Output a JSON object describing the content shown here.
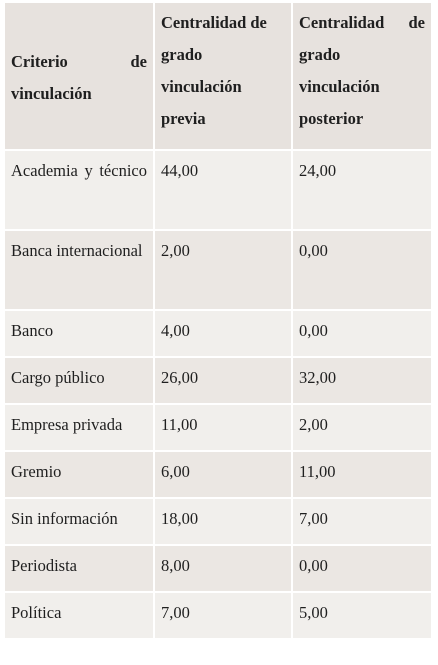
{
  "table": {
    "headers": [
      "Criterio de vinculación",
      "Centralidad de grado vinculación previa",
      "Centralidad de grado vinculación posterior"
    ],
    "rows": [
      [
        "Academia y técnico",
        "44,00",
        "24,00"
      ],
      [
        "Banca internacional",
        "2,00",
        "0,00"
      ],
      [
        "Banco",
        "4,00",
        "0,00"
      ],
      [
        "Cargo público",
        "26,00",
        "32,00"
      ],
      [
        "Empresa privada",
        "11,00",
        "2,00"
      ],
      [
        "Gremio",
        "6,00",
        "11,00"
      ],
      [
        "Sin información",
        "18,00",
        "7,00"
      ],
      [
        "Periodista",
        "8,00",
        "0,00"
      ],
      [
        "Política",
        "7,00",
        "5,00"
      ]
    ]
  }
}
